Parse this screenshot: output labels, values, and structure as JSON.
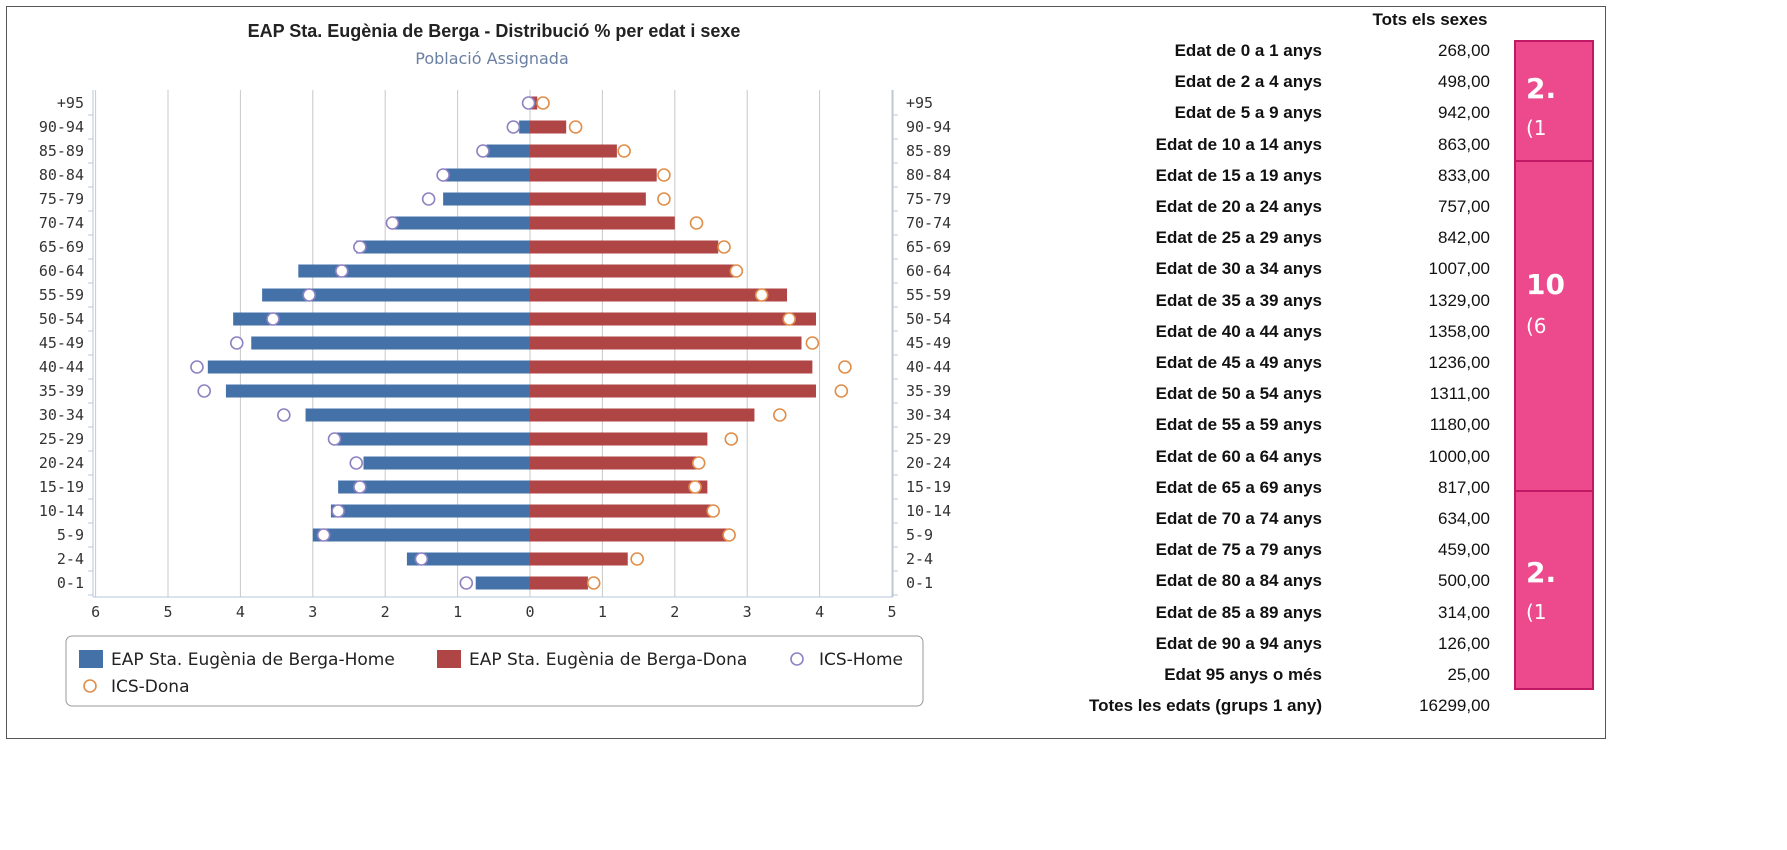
{
  "chart_data": {
    "type": "bar",
    "title": "EAP Sta. Eugènia de Berga - Distribució % per edat i sexe",
    "subtitle": "Població Assignada",
    "categories": [
      "+95",
      "90-94",
      "85-89",
      "80-84",
      "75-79",
      "70-74",
      "65-69",
      "60-64",
      "55-59",
      "50-54",
      "45-49",
      "40-44",
      "35-39",
      "30-34",
      "25-29",
      "20-24",
      "15-19",
      "10-14",
      "5-9",
      "2-4",
      "0-1"
    ],
    "series": [
      {
        "name": "EAP Sta. Eugènia de Berga-Home",
        "style": "bar",
        "side": "left",
        "color": "#4472a8",
        "values": [
          0.02,
          0.15,
          0.6,
          1.2,
          1.2,
          1.9,
          2.4,
          3.2,
          3.7,
          4.1,
          3.85,
          4.45,
          4.2,
          3.1,
          2.7,
          2.3,
          2.65,
          2.75,
          3.0,
          1.7,
          0.75
        ]
      },
      {
        "name": "EAP Sta. Eugènia de Berga-Dona",
        "style": "bar",
        "side": "right",
        "color": "#b04545",
        "values": [
          0.1,
          0.5,
          1.2,
          1.75,
          1.6,
          2.0,
          2.6,
          2.85,
          3.55,
          3.95,
          3.75,
          3.9,
          3.95,
          3.1,
          2.45,
          2.3,
          2.45,
          2.5,
          2.75,
          1.35,
          0.8
        ]
      },
      {
        "name": "ICS-Home",
        "style": "marker",
        "side": "left",
        "color": "#8f82c2",
        "values": [
          0.02,
          0.23,
          0.65,
          1.2,
          1.4,
          1.9,
          2.35,
          2.6,
          3.05,
          3.55,
          4.05,
          4.6,
          4.5,
          3.4,
          2.7,
          2.4,
          2.35,
          2.65,
          2.85,
          1.5,
          0.88
        ]
      },
      {
        "name": "ICS-Dona",
        "style": "marker",
        "side": "right",
        "color": "#e08e4a",
        "values": [
          0.18,
          0.63,
          1.3,
          1.85,
          1.85,
          2.3,
          2.68,
          2.85,
          3.2,
          3.58,
          3.9,
          4.35,
          4.3,
          3.45,
          2.78,
          2.33,
          2.28,
          2.53,
          2.75,
          1.48,
          0.88
        ]
      }
    ],
    "xticks": [
      "6",
      "5",
      "4",
      "3",
      "2",
      "1",
      "0",
      "1",
      "2",
      "3",
      "4",
      "5"
    ],
    "xlim": [
      -6,
      5
    ],
    "grid": true,
    "legend_position": "bottom"
  },
  "table": {
    "header": "Tots els sexes",
    "rows": [
      {
        "label": "Edat de 0 a 1 anys",
        "value": "268,00"
      },
      {
        "label": "Edat de 2 a 4 anys",
        "value": "498,00"
      },
      {
        "label": "Edat de 5 a 9 anys",
        "value": "942,00"
      },
      {
        "label": "Edat de 10 a 14 anys",
        "value": "863,00"
      },
      {
        "label": "Edat de 15 a 19 anys",
        "value": "833,00"
      },
      {
        "label": "Edat de 20 a 24 anys",
        "value": "757,00"
      },
      {
        "label": "Edat de 25 a 29 anys",
        "value": "842,00"
      },
      {
        "label": "Edat de 30 a 34 anys",
        "value": "1007,00"
      },
      {
        "label": "Edat de 35 a 39 anys",
        "value": "1329,00"
      },
      {
        "label": "Edat de 40 a 44 anys",
        "value": "1358,00"
      },
      {
        "label": "Edat de 45 a 49 anys",
        "value": "1236,00"
      },
      {
        "label": "Edat de 50 a 54 anys",
        "value": "1311,00"
      },
      {
        "label": "Edat de 55 a 59 anys",
        "value": "1180,00"
      },
      {
        "label": "Edat de 60 a 64 anys",
        "value": "1000,00"
      },
      {
        "label": "Edat de 65 a 69 anys",
        "value": "817,00"
      },
      {
        "label": "Edat de 70 a 74 anys",
        "value": "634,00"
      },
      {
        "label": "Edat de 75 a 79 anys",
        "value": "459,00"
      },
      {
        "label": "Edat de 80 a 84 anys",
        "value": "500,00"
      },
      {
        "label": "Edat de 85 a 89 anys",
        "value": "314,00"
      },
      {
        "label": "Edat de 90 a 94 anys",
        "value": "126,00"
      },
      {
        "label": "Edat 95 anys o més",
        "value": "25,00"
      },
      {
        "label": "Totes les edats (grups 1 any)",
        "value": "16299,00"
      }
    ]
  },
  "cards": [
    {
      "big": "2.",
      "small": "(1"
    },
    {
      "big": "10",
      "small": "(6"
    },
    {
      "big": "2.",
      "small": "(1"
    }
  ]
}
